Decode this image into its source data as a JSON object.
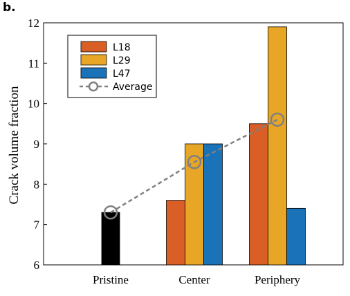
{
  "panel_label": "b.",
  "chart_data": {
    "type": "bar",
    "categories": [
      "Pristine",
      "Center",
      "Periphery"
    ],
    "series": [
      {
        "name": "L18",
        "color": "#D95F27",
        "values": [
          null,
          7.6,
          9.5
        ]
      },
      {
        "name": "L29",
        "color": "#E8A626",
        "values": [
          null,
          9.0,
          11.9
        ]
      },
      {
        "name": "L47",
        "color": "#1A72B8",
        "values": [
          null,
          9.0,
          7.4
        ]
      }
    ],
    "pristine": {
      "value": 7.3,
      "color": "#000000"
    },
    "average": {
      "name": "Average",
      "values": [
        7.3,
        8.55,
        9.6
      ],
      "color": "#808080"
    },
    "ylabel": "Crack volume fraction",
    "xlabel": "",
    "ylim": [
      6,
      12
    ],
    "yticks": [
      6,
      7,
      8,
      9,
      10,
      11,
      12
    ],
    "grid": false,
    "legend_position": "top-left"
  }
}
